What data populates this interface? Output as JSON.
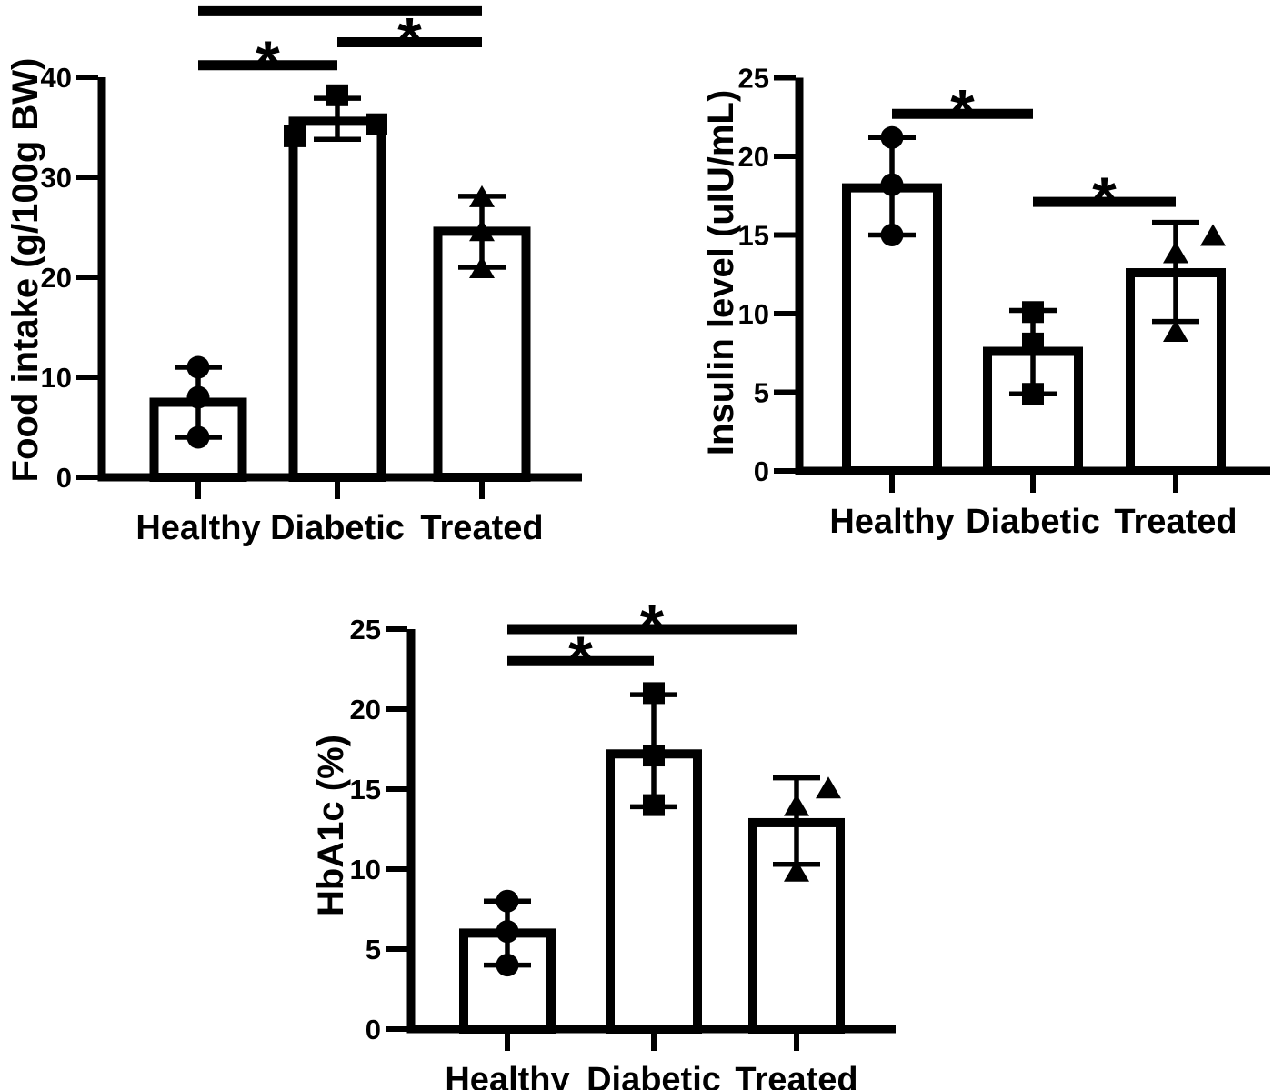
{
  "figure": {
    "background": "#ffffff",
    "ink": "#000000",
    "bar_fill": "#ffffff"
  },
  "chart_data": [
    {
      "id": "food-intake",
      "type": "bar",
      "ylabel": "Food intake (g/100g BW)",
      "categories": [
        "Healthy",
        "Diabetic",
        "Treated"
      ],
      "values": [
        7.5,
        35.6,
        24.6
      ],
      "error_bars": [
        [
          4.0,
          11.0
        ],
        [
          33.8,
          37.9
        ],
        [
          21.0,
          28.1
        ]
      ],
      "points": [
        [
          {
            "v": 4.0,
            "dx": 0
          },
          {
            "v": 8.0,
            "dx": 0
          },
          {
            "v": 11.0,
            "dx": 0
          }
        ],
        [
          {
            "v": 34.1,
            "dx": -47
          },
          {
            "v": 35.3,
            "dx": 43
          },
          {
            "v": 38.2,
            "dx": 0
          }
        ],
        [
          {
            "v": 21.0,
            "dx": 0
          },
          {
            "v": 24.7,
            "dx": 0
          },
          {
            "v": 28.1,
            "dx": 0
          }
        ]
      ],
      "point_markers": [
        "circle",
        "square",
        "triangle"
      ],
      "ylim": [
        0,
        40
      ],
      "yticks": [
        0,
        10,
        20,
        30,
        40
      ],
      "grid": false,
      "significance": [
        {
          "between": [
            "Healthy",
            "Diabetic"
          ],
          "label": "*",
          "y": 41.2
        },
        {
          "between": [
            "Diabetic",
            "Treated"
          ],
          "label": "*",
          "y": 43.5
        },
        {
          "between": [
            "Healthy",
            "Treated"
          ],
          "label": "",
          "y": 46.6
        }
      ]
    },
    {
      "id": "insulin-level",
      "type": "bar",
      "ylabel": "Insulin level (uIU/mL)",
      "categories": [
        "Healthy",
        "Diabetic",
        "Treated"
      ],
      "values": [
        18.0,
        7.6,
        12.6
      ],
      "error_bars": [
        [
          15.0,
          21.2
        ],
        [
          4.9,
          10.2
        ],
        [
          9.5,
          15.8
        ]
      ],
      "points": [
        [
          {
            "v": 15.0,
            "dx": 0
          },
          {
            "v": 18.2,
            "dx": 0
          },
          {
            "v": 21.2,
            "dx": 0
          }
        ],
        [
          {
            "v": 4.9,
            "dx": 0
          },
          {
            "v": 8.1,
            "dx": 0
          },
          {
            "v": 10.1,
            "dx": 0
          }
        ],
        [
          {
            "v": 8.9,
            "dx": 0
          },
          {
            "v": 13.9,
            "dx": 0
          },
          {
            "v": 15.0,
            "dx": 41
          }
        ]
      ],
      "point_markers": [
        "circle",
        "square",
        "triangle"
      ],
      "ylim": [
        0,
        25
      ],
      "yticks": [
        0,
        5,
        10,
        15,
        20,
        25
      ],
      "grid": false,
      "significance": [
        {
          "between": [
            "Healthy",
            "Diabetic"
          ],
          "label": "*",
          "y": 22.7
        },
        {
          "between": [
            "Diabetic",
            "Treated"
          ],
          "label": "*",
          "y": 17.1
        }
      ]
    },
    {
      "id": "hba1c",
      "type": "bar",
      "ylabel": "HbA1c (%)",
      "categories": [
        "Healthy",
        "Diabetic",
        "Treated"
      ],
      "values": [
        6.0,
        17.2,
        12.9
      ],
      "error_bars": [
        [
          4.0,
          8.0
        ],
        [
          13.9,
          20.9
        ],
        [
          10.3,
          15.7
        ]
      ],
      "points": [
        [
          {
            "v": 4.0,
            "dx": 0
          },
          {
            "v": 6.1,
            "dx": 0
          },
          {
            "v": 8.0,
            "dx": 0
          }
        ],
        [
          {
            "v": 14.0,
            "dx": 0
          },
          {
            "v": 17.1,
            "dx": 0
          },
          {
            "v": 21.0,
            "dx": 0
          }
        ],
        [
          {
            "v": 9.9,
            "dx": 0
          },
          {
            "v": 14.0,
            "dx": 0
          },
          {
            "v": 15.1,
            "dx": 35
          }
        ]
      ],
      "point_markers": [
        "circle",
        "square",
        "triangle"
      ],
      "ylim": [
        0,
        25
      ],
      "yticks": [
        0,
        5,
        10,
        15,
        20,
        25
      ],
      "grid": false,
      "significance": [
        {
          "between": [
            "Healthy",
            "Diabetic"
          ],
          "label": "*",
          "y": 23.0
        },
        {
          "between": [
            "Healthy",
            "Treated"
          ],
          "label": "*",
          "y": 25.0
        }
      ]
    }
  ]
}
